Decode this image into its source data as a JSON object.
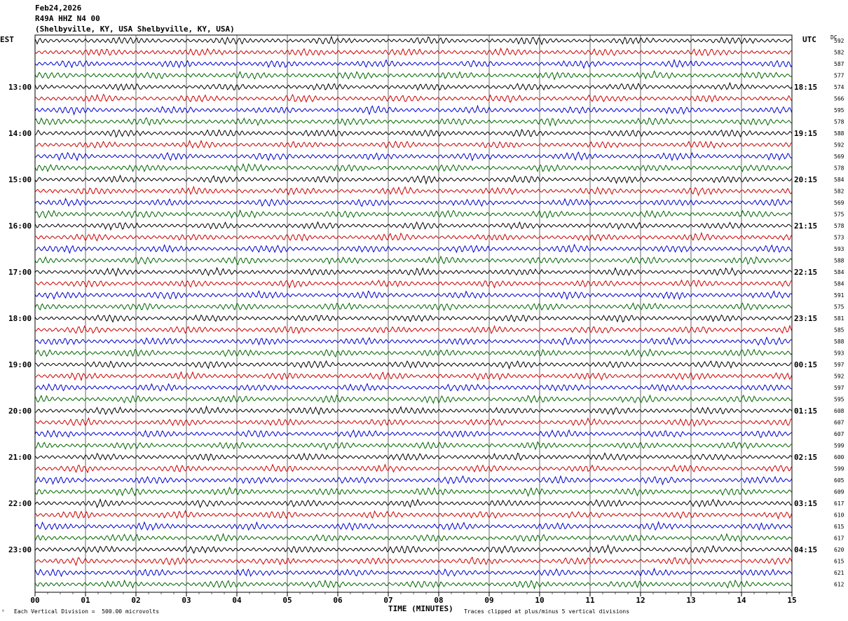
{
  "header": {
    "date": "Feb24,2026",
    "station": "R49A HHZ N4 00",
    "location": "(Shelbyville, KY, USA Shelbyville, KY, USA)"
  },
  "left_tz": "EST",
  "right_tz": "UTC",
  "dc_label": "DC",
  "footer": {
    "scale": "Each Vertical Division =  500.00 microvolts",
    "xlabel": "TIME (MINUTES)",
    "clip_note": "Traces clipped at plus/minus 5 vertical divisions"
  },
  "colors": {
    "trace": [
      "#000000",
      "#cc0000",
      "#0000cc",
      "#006600"
    ],
    "grid": "#000000"
  },
  "chart_data": {
    "type": "line",
    "title": "",
    "xlabel": "TIME (MINUTES)",
    "x_ticks": [
      "00",
      "01",
      "02",
      "03",
      "04",
      "05",
      "06",
      "07",
      "08",
      "09",
      "10",
      "11",
      "12",
      "13",
      "14",
      "15"
    ],
    "xlim": [
      0,
      15
    ],
    "rows_per_hour": 4,
    "minutes_per_row": 15,
    "est_labels": [
      "13:00",
      "14:00",
      "15:00",
      "16:00",
      "17:00",
      "18:00",
      "19:00",
      "20:00",
      "21:00",
      "22:00",
      "23:00"
    ],
    "utc_labels": [
      "18:15",
      "19:15",
      "20:15",
      "21:15",
      "22:15",
      "23:15",
      "00:15",
      "01:15",
      "02:15",
      "03:15",
      "04:15"
    ],
    "dc_values": [
      592,
      582,
      587,
      577,
      574,
      566,
      595,
      578,
      588,
      592,
      569,
      578,
      584,
      582,
      569,
      575,
      578,
      573,
      593,
      588,
      584,
      584,
      591,
      575,
      581,
      585,
      588,
      593,
      597,
      592,
      597,
      595,
      608,
      607,
      607,
      599,
      600,
      599,
      605,
      609,
      617,
      610,
      615,
      617,
      620,
      615,
      621,
      612
    ]
  }
}
